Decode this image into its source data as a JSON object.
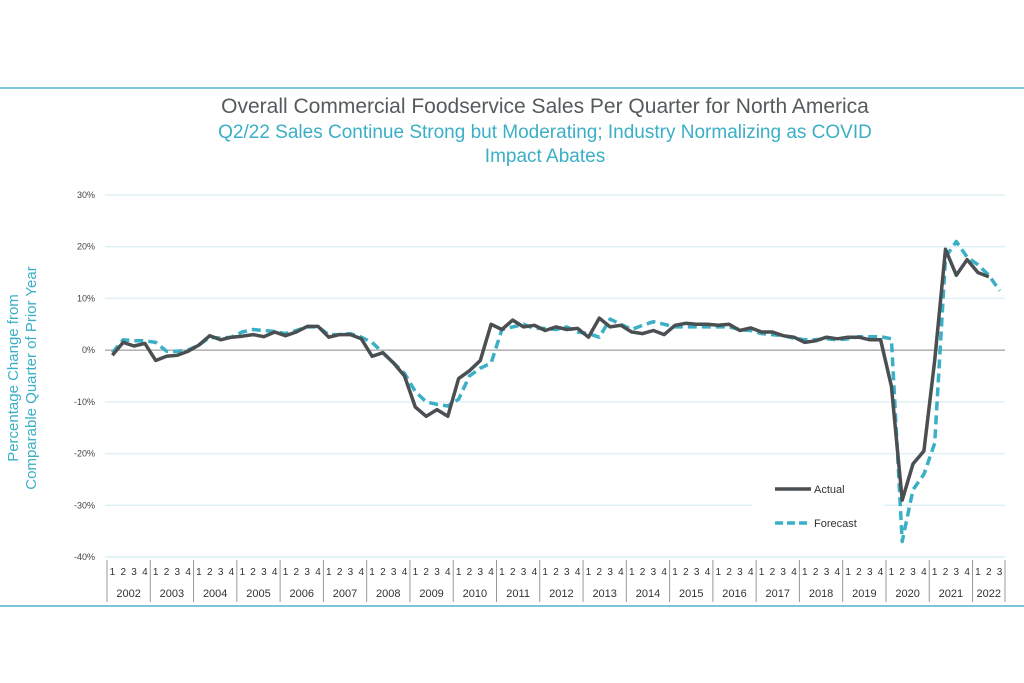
{
  "chart_data": {
    "type": "line",
    "title": "Overall Commercial Foodservice Sales Per Quarter for North America",
    "subtitle_lines": [
      "Q2/22 Sales Continue Strong but Moderating; Industry Normalizing as COVID",
      "Impact Abates"
    ],
    "ylabel_lines": [
      "Percentage Change from",
      "Comparable Quarter of Prior Year"
    ],
    "xlabel": "",
    "ylim": [
      -40,
      30
    ],
    "yticks": [
      30,
      20,
      10,
      0,
      -10,
      -20,
      -30,
      -40
    ],
    "ytick_labels": [
      "30%",
      "20%",
      "10%",
      "0%",
      "-10%",
      "-20%",
      "-30%",
      "-40%"
    ],
    "years": [
      "2002",
      "2003",
      "2004",
      "2005",
      "2006",
      "2007",
      "2008",
      "2009",
      "2010",
      "2011",
      "2012",
      "2013",
      "2014",
      "2015",
      "2016",
      "2017",
      "2018",
      "2019",
      "2020",
      "2021",
      "2022"
    ],
    "quarters_in_last_year": 3,
    "quarter_labels": [
      "1",
      "2",
      "3",
      "4"
    ],
    "grid": true,
    "legend_position": "bottom-right",
    "series": [
      {
        "name": "Actual",
        "style": "solid",
        "color": "#4a4f52",
        "values": [
          -1,
          1.5,
          0.8,
          1.3,
          -2,
          -1.2,
          -1,
          -0.2,
          1,
          2.8,
          2,
          2.5,
          2.7,
          3,
          2.6,
          3.5,
          2.8,
          3.5,
          4.6,
          4.6,
          2.5,
          3,
          3,
          2.2,
          -1.2,
          -0.5,
          -2.5,
          -5,
          -11,
          -12.8,
          -11.5,
          -12.8,
          -5.5,
          -4,
          -2,
          5,
          4,
          5.8,
          4.5,
          4.8,
          3.8,
          4.5,
          4,
          4.2,
          2.5,
          6.2,
          4.5,
          4.8,
          3.5,
          3.2,
          3.8,
          3,
          4.8,
          5.2,
          5,
          5,
          4.8,
          5,
          3.8,
          4.3,
          3.5,
          3.5,
          2.8,
          2.5,
          1.5,
          1.8,
          2.5,
          2.2,
          2.5,
          2.5,
          2,
          2,
          -7,
          -29,
          -22,
          -19.5,
          -2,
          19.5,
          14.5,
          17.5,
          15,
          14.2
        ]
      },
      {
        "name": "Forecast",
        "style": "dashed",
        "color": "#3aafc6",
        "values": [
          -0.5,
          2,
          1.8,
          1.8,
          1.5,
          -0.2,
          -0.2,
          0,
          1,
          2.5,
          2.3,
          2.5,
          3.5,
          4,
          3.8,
          3.6,
          3.2,
          3.8,
          4.5,
          4.5,
          3,
          3,
          3.2,
          2.5,
          1.5,
          -0.5,
          -2.5,
          -4.5,
          -8,
          -10,
          -10.5,
          -10.8,
          -9.5,
          -5,
          -3.5,
          -2.5,
          4,
          4.5,
          5,
          4.2,
          4.2,
          4,
          4.5,
          3.5,
          3.2,
          2.5,
          6,
          5,
          4,
          4.8,
          5.5,
          5,
          4.5,
          4.5,
          4.5,
          4.5,
          4.5,
          4.5,
          4,
          3.8,
          3.2,
          3,
          2.8,
          2.3,
          2,
          2,
          2.2,
          2,
          2.2,
          2.6,
          2.6,
          2.6,
          2.2,
          -37,
          -27,
          -24,
          -18,
          18,
          21,
          18,
          16.5,
          14.5,
          11.5
        ]
      }
    ]
  },
  "colors": {
    "accent": "#3aafc6",
    "dark": "#4a4f52",
    "grid": "#dff0f4"
  }
}
